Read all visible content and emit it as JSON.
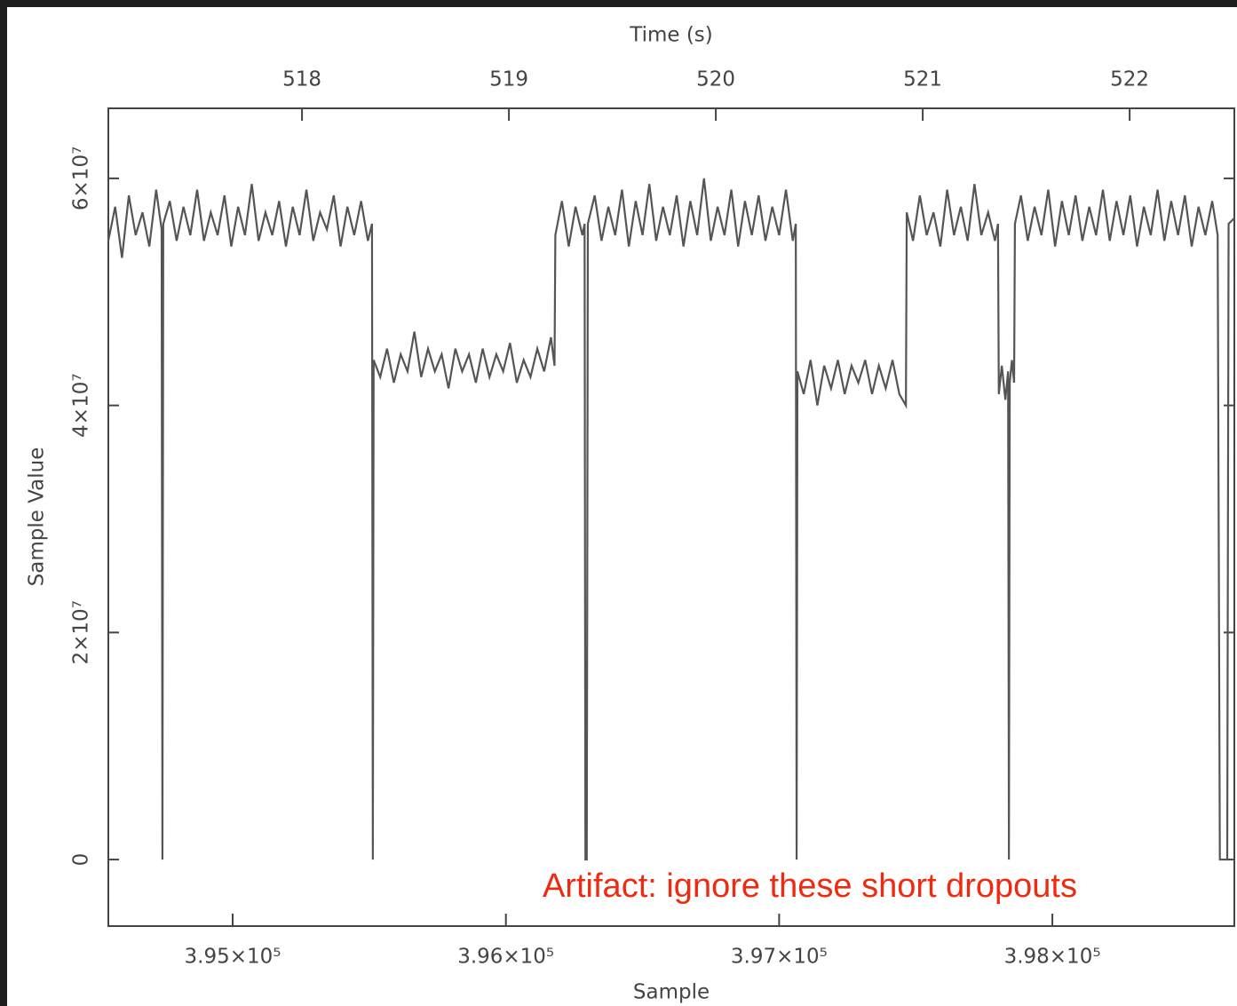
{
  "chart_data": {
    "type": "line",
    "xlabel": "Sample",
    "ylabel": "Sample Value",
    "x2label": "Time (s)",
    "annotation": "Artifact: ignore these short dropouts",
    "color": "#555555",
    "xlim": [
      394545,
      398666
    ],
    "ylim": [
      -5860000,
      66170000
    ],
    "x2lim": [
      517.064,
      522.506
    ],
    "xticks": [
      {
        "value": 395000,
        "label": "3.95×10⁵"
      },
      {
        "value": 396000,
        "label": "3.96×10⁵"
      },
      {
        "value": 397000,
        "label": "3.97×10⁵"
      },
      {
        "value": 398000,
        "label": "3.98×10⁵"
      }
    ],
    "yticks": [
      0,
      {
        "value": 20000000,
        "label": "2×10⁷"
      },
      {
        "value": 40000000,
        "label": "4×10⁷"
      },
      {
        "value": 60000000,
        "label": "6×10⁷"
      }
    ],
    "x2ticks": [
      518,
      519,
      520,
      521,
      522
    ],
    "x": [
      394545,
      394570,
      394595,
      394620,
      394645,
      394670,
      394695,
      394720,
      394740,
      394743,
      394746,
      394770,
      394795,
      394820,
      394845,
      394870,
      394895,
      394920,
      394945,
      394970,
      394995,
      395020,
      395045,
      395070,
      395095,
      395120,
      395145,
      395170,
      395195,
      395220,
      395245,
      395270,
      395295,
      395320,
      395345,
      395370,
      395395,
      395420,
      395445,
      395470,
      395495,
      395510,
      395513,
      395516,
      395540,
      395565,
      395590,
      395615,
      395640,
      395665,
      395690,
      395715,
      395740,
      395765,
      395790,
      395815,
      395840,
      395865,
      395890,
      395915,
      395940,
      395965,
      395990,
      396015,
      396040,
      396065,
      396090,
      396115,
      396140,
      396165,
      396178,
      396181,
      396205,
      396230,
      396255,
      396280,
      396288,
      396291,
      396296,
      396300,
      396325,
      396350,
      396375,
      396400,
      396425,
      396450,
      396475,
      396500,
      396525,
      396550,
      396575,
      396600,
      396625,
      396650,
      396675,
      396700,
      396725,
      396750,
      396775,
      396800,
      396825,
      396850,
      396875,
      396900,
      396925,
      396950,
      396975,
      397000,
      397025,
      397050,
      397061,
      397064,
      397067,
      397090,
      397115,
      397140,
      397165,
      397190,
      397215,
      397240,
      397265,
      397290,
      397315,
      397340,
      397365,
      397390,
      397415,
      397440,
      397464,
      397467,
      397490,
      397515,
      397540,
      397565,
      397590,
      397615,
      397640,
      397665,
      397690,
      397715,
      397740,
      397765,
      397790,
      397801,
      397804,
      397815,
      397828,
      397838,
      397841,
      397844,
      397852,
      397860,
      397863,
      397885,
      397910,
      397935,
      397960,
      397985,
      398010,
      398035,
      398060,
      398085,
      398110,
      398135,
      398160,
      398185,
      398210,
      398235,
      398260,
      398285,
      398310,
      398335,
      398360,
      398385,
      398410,
      398435,
      398460,
      398485,
      398510,
      398535,
      398560,
      398585,
      398605,
      398613,
      398640,
      398645,
      398666
    ],
    "values": [
      54500000.0,
      57500000.0,
      53000000.0,
      58500000.0,
      55000000.0,
      57000000.0,
      54000000.0,
      59000000.0,
      55500000.0,
      0,
      56000000.0,
      58000000.0,
      54500000.0,
      57500000.0,
      55000000.0,
      59000000.0,
      54500000.0,
      57000000.0,
      55000000.0,
      58500000.0,
      54000000.0,
      57500000.0,
      55000000.0,
      59500000.0,
      54500000.0,
      57000000.0,
      55000000.0,
      58000000.0,
      54000000.0,
      57500000.0,
      55000000.0,
      59000000.0,
      54500000.0,
      57000000.0,
      55500000.0,
      58500000.0,
      54000000.0,
      57500000.0,
      55000000.0,
      58000000.0,
      54500000.0,
      56000000.0,
      0,
      44000000.0,
      42500000.0,
      45000000.0,
      42000000.0,
      44500000.0,
      43000000.0,
      46500000.0,
      42500000.0,
      45000000.0,
      43000000.0,
      44500000.0,
      41500000.0,
      45000000.0,
      43000000.0,
      44500000.0,
      42000000.0,
      45000000.0,
      42500000.0,
      44500000.0,
      43000000.0,
      45500000.0,
      42000000.0,
      44000000.0,
      42500000.0,
      45000000.0,
      43000000.0,
      46000000.0,
      43500000.0,
      55000000.0,
      58000000.0,
      54000000.0,
      57500000.0,
      55000000.0,
      56000000.0,
      0,
      0,
      56000000.0,
      58500000.0,
      54500000.0,
      57500000.0,
      55000000.0,
      59000000.0,
      54000000.0,
      58000000.0,
      55000000.0,
      59500000.0,
      54500000.0,
      57500000.0,
      55000000.0,
      58500000.0,
      54000000.0,
      58000000.0,
      55000000.0,
      60000000.0,
      54500000.0,
      57500000.0,
      55000000.0,
      59000000.0,
      54000000.0,
      58000000.0,
      55000000.0,
      58500000.0,
      54500000.0,
      57500000.0,
      55000000.0,
      59000000.0,
      54500000.0,
      56000000.0,
      0,
      43000000.0,
      41000000.0,
      44000000.0,
      40000000.0,
      43500000.0,
      41500000.0,
      44000000.0,
      41000000.0,
      43500000.0,
      42000000.0,
      44000000.0,
      41000000.0,
      43500000.0,
      41500000.0,
      44000000.0,
      41000000.0,
      40000000.0,
      57000000.0,
      54500000.0,
      58500000.0,
      55000000.0,
      57000000.0,
      54000000.0,
      59000000.0,
      55000000.0,
      57500000.0,
      54500000.0,
      59500000.0,
      55000000.0,
      57000000.0,
      54500000.0,
      56000000.0,
      41000000.0,
      43500000.0,
      40500000.0,
      43000000.0,
      0,
      42000000.0,
      44000000.0,
      42000000.0,
      56000000.0,
      58500000.0,
      54500000.0,
      57500000.0,
      55000000.0,
      59000000.0,
      54000000.0,
      58000000.0,
      55000000.0,
      58500000.0,
      54500000.0,
      57500000.0,
      55000000.0,
      59000000.0,
      54500000.0,
      58000000.0,
      55000000.0,
      58500000.0,
      54000000.0,
      57500000.0,
      55000000.0,
      59000000.0,
      54500000.0,
      58000000.0,
      55000000.0,
      58500000.0,
      54000000.0,
      57500000.0,
      55000000.0,
      58000000.0,
      55000000.0,
      0,
      0,
      56000000.0,
      56500000.0
    ]
  }
}
